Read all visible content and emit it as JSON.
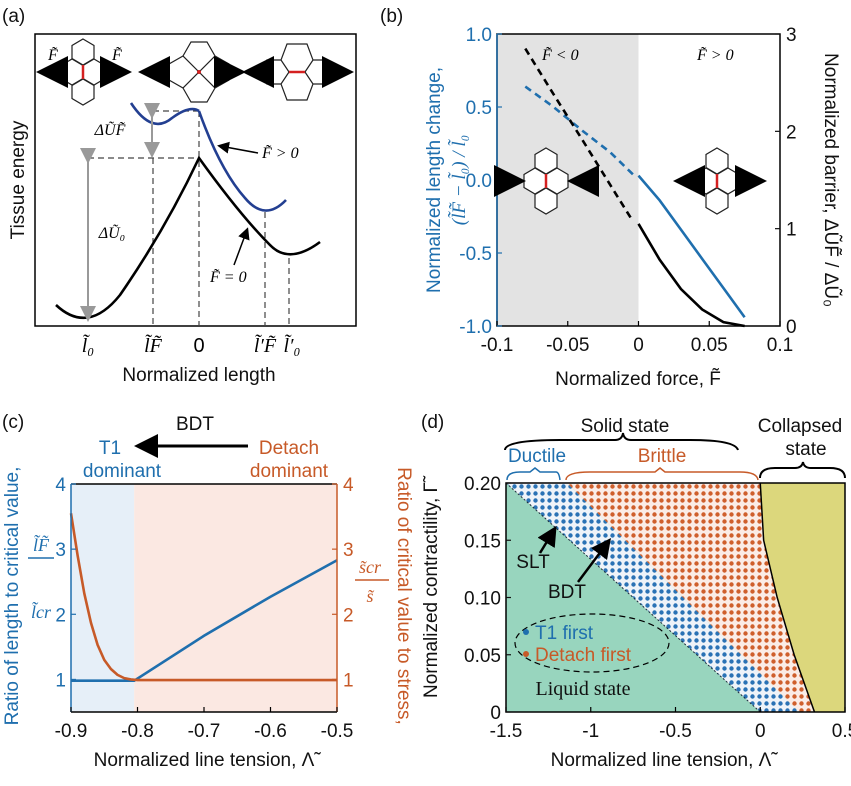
{
  "colors": {
    "blue": "#1f6fae",
    "orange": "#c75a28",
    "navy": "#233f91",
    "liquid": "#98d5be",
    "collapsed": "#dcd77c",
    "shade_gray": "#e3e3e3",
    "shade_blue": "#e6eff8",
    "shade_orange": "#fbe8e2",
    "cell_edge_red": "#d42020"
  },
  "panel_a": {
    "tag": "(a)",
    "ylabel": "Tissue energy",
    "xlabel": "Normalized length",
    "ticks": [
      "l̃₀",
      "l̃F̃",
      "0",
      "l̃′F̃",
      "l̃′₀"
    ],
    "force_labels": [
      "F̃",
      "F̃"
    ],
    "delta_UF": "ΔŨF̃",
    "delta_U0": "ΔŨ₀",
    "curve_F_pos": "F̃ > 0",
    "curve_F_zero": "F̃ = 0"
  },
  "chart_data": [
    {
      "panel": "b",
      "type": "line",
      "tag": "(b)",
      "xlabel": "Normalized force, F̃",
      "ylabel_line1": "Normalized length change,",
      "ylabel_line2": "(l̃F̃ − l̃₀) / l̃₀",
      "y2label": "Normalized barrier, ΔŨF̃ / ΔŨ₀",
      "xlim": [
        -0.1,
        0.1
      ],
      "ylim": [
        -1.0,
        1.0
      ],
      "y2lim": [
        0,
        3
      ],
      "xticks": [
        "-0.1",
        "-0.05",
        "0",
        "0.05",
        "0.1"
      ],
      "yticks": [
        "-1.0",
        "-0.5",
        "0.0",
        "0.5",
        "1.0"
      ],
      "y2ticks": [
        "0",
        "1",
        "2",
        "3"
      ],
      "shaded_region": [
        -0.1,
        0
      ],
      "annotations": [
        "F̃ < 0",
        "F̃ > 0"
      ],
      "series": [
        {
          "axis": "left",
          "color": "#1f6fae",
          "style": "dashed",
          "x": [
            -0.08,
            -0.06,
            -0.04,
            -0.02,
            -0.003
          ],
          "y": [
            0.64,
            0.5,
            0.34,
            0.19,
            0.03
          ]
        },
        {
          "axis": "left",
          "color": "#1f6fae",
          "style": "solid",
          "x": [
            0,
            0.015,
            0.03,
            0.045,
            0.06,
            0.075
          ],
          "y": [
            0.03,
            -0.14,
            -0.34,
            -0.54,
            -0.74,
            -0.94
          ]
        },
        {
          "axis": "right",
          "color": "#000000",
          "style": "dashed",
          "x": [
            -0.08,
            -0.06,
            -0.04,
            -0.02,
            -0.005
          ],
          "y": [
            2.85,
            2.38,
            1.92,
            1.45,
            1.1
          ]
        },
        {
          "axis": "right",
          "color": "#000000",
          "style": "solid",
          "x": [
            0,
            0.015,
            0.03,
            0.045,
            0.06,
            0.075
          ],
          "y": [
            1.05,
            0.68,
            0.38,
            0.17,
            0.04,
            0.0
          ]
        }
      ]
    },
    {
      "panel": "c",
      "type": "line",
      "tag": "(c)",
      "xlabel": "Normalized line tension, Λ̃",
      "ylabel": "Ratio of length to critical value,",
      "ylabel_fraction": [
        "l̃F̃",
        "l̃cr"
      ],
      "y2label": "Ratio of critical value to stress,",
      "y2label_fraction": [
        "s̃cr",
        "s̃"
      ],
      "xlim": [
        -0.9,
        -0.5
      ],
      "ylim": [
        0.5,
        4
      ],
      "y2lim": [
        0.5,
        4
      ],
      "xticks": [
        "-0.9",
        "-0.8",
        "-0.7",
        "-0.6",
        "-0.5"
      ],
      "yticks": [
        "1",
        "2",
        "3",
        "4"
      ],
      "y2ticks": [
        "1",
        "2",
        "3",
        "4"
      ],
      "shaded_regions": [
        {
          "range": [
            -0.9,
            -0.805
          ],
          "label": "T1 dominant"
        },
        {
          "range": [
            -0.805,
            -0.5
          ],
          "label": "Detach dominant"
        }
      ],
      "top_labels": {
        "arrow": "BDT",
        "left_1": "T1",
        "left_2": "dominant",
        "right_1": "Detach",
        "right_2": "dominant"
      },
      "series": [
        {
          "axis": "left",
          "color": "#1f6fae",
          "x": [
            -0.9,
            -0.85,
            -0.805,
            -0.7,
            -0.6,
            -0.5
          ],
          "y": [
            0.98,
            0.98,
            0.98,
            1.67,
            2.27,
            2.83
          ]
        },
        {
          "axis": "right",
          "color": "#c75a28",
          "x": [
            -0.9,
            -0.89,
            -0.88,
            -0.87,
            -0.86,
            -0.85,
            -0.84,
            -0.83,
            -0.82,
            -0.81,
            -0.8,
            -0.7,
            -0.6,
            -0.5
          ],
          "y": [
            3.55,
            2.9,
            2.32,
            1.87,
            1.53,
            1.3,
            1.16,
            1.07,
            1.02,
            1.0,
            0.99,
            0.99,
            0.99,
            0.99
          ]
        }
      ]
    },
    {
      "panel": "d",
      "type": "area",
      "tag": "(d)",
      "xlabel": "Normalized line tension, Λ̃",
      "ylabel": "Normalized contractility, Γ̃",
      "xlim": [
        -1.5,
        0.5
      ],
      "ylim": [
        0,
        0.2
      ],
      "xticks": [
        "-1.5",
        "-1",
        "-0.5",
        "0",
        "0.5"
      ],
      "yticks": [
        "0",
        "0.05",
        "0.10",
        "0.15",
        "0.20"
      ],
      "region_labels": {
        "solid": "Solid state",
        "collapsed_1": "Collapsed",
        "collapsed_2": "state",
        "ductile": "Ductile",
        "brittle": "Brittle",
        "liquid": "Liquid state"
      },
      "annotations": [
        "SLT",
        "BDT"
      ],
      "legend": [
        "T1 first",
        "Detach first"
      ],
      "boundaries": {
        "SLT": {
          "x": [
            -1.5,
            0
          ],
          "y": [
            0.2,
            0
          ]
        },
        "BDT": {
          "x": [
            -1.14,
            0.23
          ],
          "y": [
            0.2,
            0
          ]
        },
        "collapse": {
          "x": [
            0,
            0.02,
            0.1,
            0.2,
            0.32
          ],
          "y": [
            0.2,
            0.15,
            0.1,
            0.05,
            0
          ]
        }
      }
    }
  ]
}
